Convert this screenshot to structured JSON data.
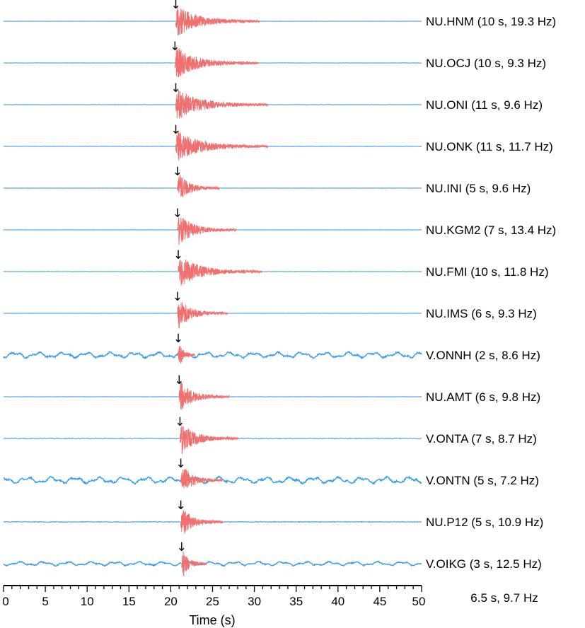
{
  "chart_data": {
    "type": "line",
    "xlabel": "Time (s)",
    "xlim": [
      0,
      50
    ],
    "xticks": [
      0,
      5,
      10,
      15,
      20,
      25,
      30,
      35,
      40,
      45,
      50
    ],
    "summary_label": "6.5 s, 9.7 Hz",
    "colors": {
      "noise": "#3399ee",
      "signal": "#f07070",
      "signal_dark": "#996655"
    },
    "series": [
      {
        "name": "NU.HNM (10 s, 19.3 Hz)",
        "arrival": 20.6,
        "duration": 10,
        "freq": 19.3,
        "noise": 0.3
      },
      {
        "name": "NU.OCJ (10 s, 9.3 Hz)",
        "arrival": 20.5,
        "duration": 10,
        "freq": 9.3,
        "noise": 0.5
      },
      {
        "name": "NU.ONI (11 s, 9.6 Hz)",
        "arrival": 20.6,
        "duration": 11,
        "freq": 9.6,
        "noise": 0.5
      },
      {
        "name": "NU.ONK (11 s, 11.7 Hz)",
        "arrival": 20.6,
        "duration": 11,
        "freq": 11.7,
        "noise": 0.5
      },
      {
        "name": "NU.INI (5 s, 9.6 Hz)",
        "arrival": 20.8,
        "duration": 5,
        "freq": 9.6,
        "noise": 0.4
      },
      {
        "name": "NU.KGM2 (7 s, 13.4 Hz)",
        "arrival": 20.8,
        "duration": 7,
        "freq": 13.4,
        "noise": 0.4
      },
      {
        "name": "NU.FMI (10 s, 11.8 Hz)",
        "arrival": 20.9,
        "duration": 10,
        "freq": 11.8,
        "noise": 0.4
      },
      {
        "name": "NU.IMS (6 s, 9.3 Hz)",
        "arrival": 20.8,
        "duration": 6,
        "freq": 9.3,
        "noise": 0.4
      },
      {
        "name": "V.ONNH (2 s, 8.6 Hz)",
        "arrival": 20.9,
        "duration": 2,
        "freq": 8.6,
        "noise": 2.2
      },
      {
        "name": "NU.AMT (6 s, 9.8 Hz)",
        "arrival": 21.0,
        "duration": 6,
        "freq": 9.8,
        "noise": 0.4
      },
      {
        "name": "V.ONTA (7 s, 8.7 Hz)",
        "arrival": 21.1,
        "duration": 7,
        "freq": 8.7,
        "noise": 0.8
      },
      {
        "name": "V.ONTN (5 s, 7.2 Hz)",
        "arrival": 21.2,
        "duration": 5,
        "freq": 7.2,
        "noise": 2.5
      },
      {
        "name": "NU.P12 (5 s, 10.9 Hz)",
        "arrival": 21.2,
        "duration": 5,
        "freq": 10.9,
        "noise": 1.0
      },
      {
        "name": "V.OIKG (3 s, 12.5 Hz)",
        "arrival": 21.3,
        "duration": 3,
        "freq": 12.5,
        "noise": 1.6
      }
    ]
  }
}
